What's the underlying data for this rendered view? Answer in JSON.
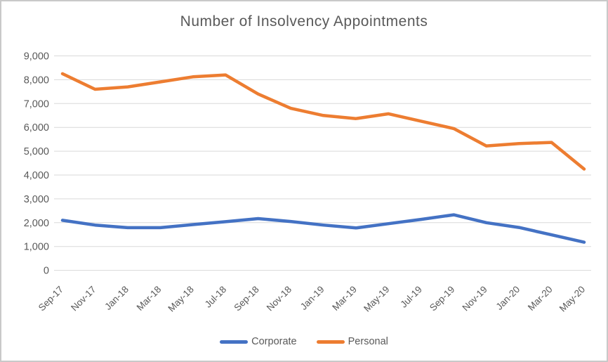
{
  "chart_data": {
    "type": "line",
    "title": "Number of Insolvency Appointments",
    "xlabel": "",
    "ylabel": "",
    "categories": [
      "Sep-17",
      "Nov-17",
      "Jan-18",
      "Mar-18",
      "May-18",
      "Jul-18",
      "Sep-18",
      "Nov-18",
      "Jan-19",
      "Mar-19",
      "May-19",
      "Jul-19",
      "Sep-19",
      "Nov-19",
      "Jan-20",
      "Mar-20",
      "May-20"
    ],
    "series": [
      {
        "name": "Corporate",
        "color": "#4472C4",
        "values": [
          2100,
          1900,
          1790,
          1790,
          1920,
          2040,
          2170,
          2050,
          1900,
          1780,
          1960,
          2140,
          2330,
          2000,
          1800,
          1490,
          1180
        ]
      },
      {
        "name": "Personal",
        "color": "#ED7D31",
        "values": [
          8250,
          7600,
          7700,
          7910,
          8120,
          8200,
          7400,
          6800,
          6500,
          6370,
          6570,
          6260,
          5950,
          5220,
          5320,
          5370,
          4250
        ]
      }
    ],
    "ylim": [
      0,
      9000
    ],
    "y_ticks": [
      0,
      1000,
      2000,
      3000,
      4000,
      5000,
      6000,
      7000,
      8000,
      9000
    ],
    "y_tick_labels": [
      "0",
      "1,000",
      "2,000",
      "3,000",
      "4,000",
      "5,000",
      "6,000",
      "7,000",
      "8,000",
      "9,000"
    ],
    "grid": "horizontal",
    "legend_position": "bottom"
  },
  "colors": {
    "background": "#FFFFFF",
    "frame_border": "#C9C9C9",
    "grid": "#D9D9D9",
    "text": "#595959"
  }
}
